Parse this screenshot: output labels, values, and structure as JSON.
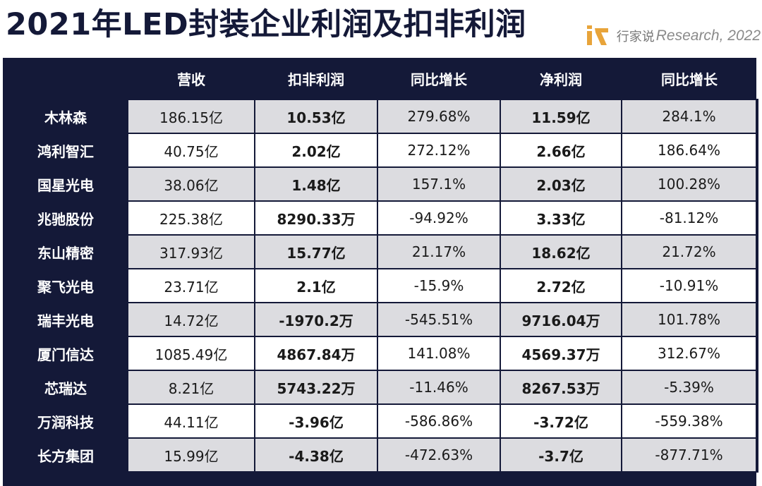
{
  "title": "2021年LED封装企业利润及扣非利润",
  "brand": {
    "logo_icon": "hangjiashuo-logo-icon",
    "logo_color": "#e8a43a",
    "cn": "行家说",
    "en": "Research, 2022"
  },
  "chart_data": {
    "type": "table",
    "columns": [
      "",
      "营收",
      "扣非利润",
      "同比增长",
      "净利润",
      "同比增长"
    ],
    "rows": [
      {
        "company": "木林森",
        "revenue": "186.15亿",
        "non_gaap_profit": "10.53亿",
        "non_gaap_yoy": "279.68%",
        "net_profit": "11.59亿",
        "net_yoy": "284.1%"
      },
      {
        "company": "鸿利智汇",
        "revenue": "40.75亿",
        "non_gaap_profit": "2.02亿",
        "non_gaap_yoy": "272.12%",
        "net_profit": "2.66亿",
        "net_yoy": "186.64%"
      },
      {
        "company": "国星光电",
        "revenue": "38.06亿",
        "non_gaap_profit": "1.48亿",
        "non_gaap_yoy": "157.1%",
        "net_profit": "2.03亿",
        "net_yoy": "100.28%"
      },
      {
        "company": "兆驰股份",
        "revenue": "225.38亿",
        "non_gaap_profit": "8290.33万",
        "non_gaap_yoy": "-94.92%",
        "net_profit": "3.33亿",
        "net_yoy": "-81.12%"
      },
      {
        "company": "东山精密",
        "revenue": "317.93亿",
        "non_gaap_profit": "15.77亿",
        "non_gaap_yoy": "21.17%",
        "net_profit": "18.62亿",
        "net_yoy": "21.72%"
      },
      {
        "company": "聚飞光电",
        "revenue": "23.71亿",
        "non_gaap_profit": "2.1亿",
        "non_gaap_yoy": "-15.9%",
        "net_profit": "2.72亿",
        "net_yoy": "-10.91%"
      },
      {
        "company": "瑞丰光电",
        "revenue": "14.72亿",
        "non_gaap_profit": "-1970.2万",
        "non_gaap_yoy": "-545.51%",
        "net_profit": "9716.04万",
        "net_yoy": "101.78%"
      },
      {
        "company": "厦门信达",
        "revenue": "1085.49亿",
        "non_gaap_profit": "4867.84万",
        "non_gaap_yoy": "141.08%",
        "net_profit": "4569.37万",
        "net_yoy": "312.67%"
      },
      {
        "company": "芯瑞达",
        "revenue": "8.21亿",
        "non_gaap_profit": "5743.22万",
        "non_gaap_yoy": "-11.46%",
        "net_profit": "8267.53万",
        "net_yoy": "-5.39%"
      },
      {
        "company": "万润科技",
        "revenue": "44.11亿",
        "non_gaap_profit": "-3.96亿",
        "non_gaap_yoy": "-586.86%",
        "net_profit": "-3.72亿",
        "net_yoy": "-559.38%"
      },
      {
        "company": "长方集团",
        "revenue": "15.99亿",
        "non_gaap_profit": "-4.38亿",
        "non_gaap_yoy": "-472.63%",
        "net_profit": "-3.7亿",
        "net_yoy": "-877.71%"
      }
    ]
  },
  "colors": {
    "header_bg": "#141938",
    "odd_row_bg": "#dcdce0",
    "even_row_bg": "#ffffff"
  }
}
